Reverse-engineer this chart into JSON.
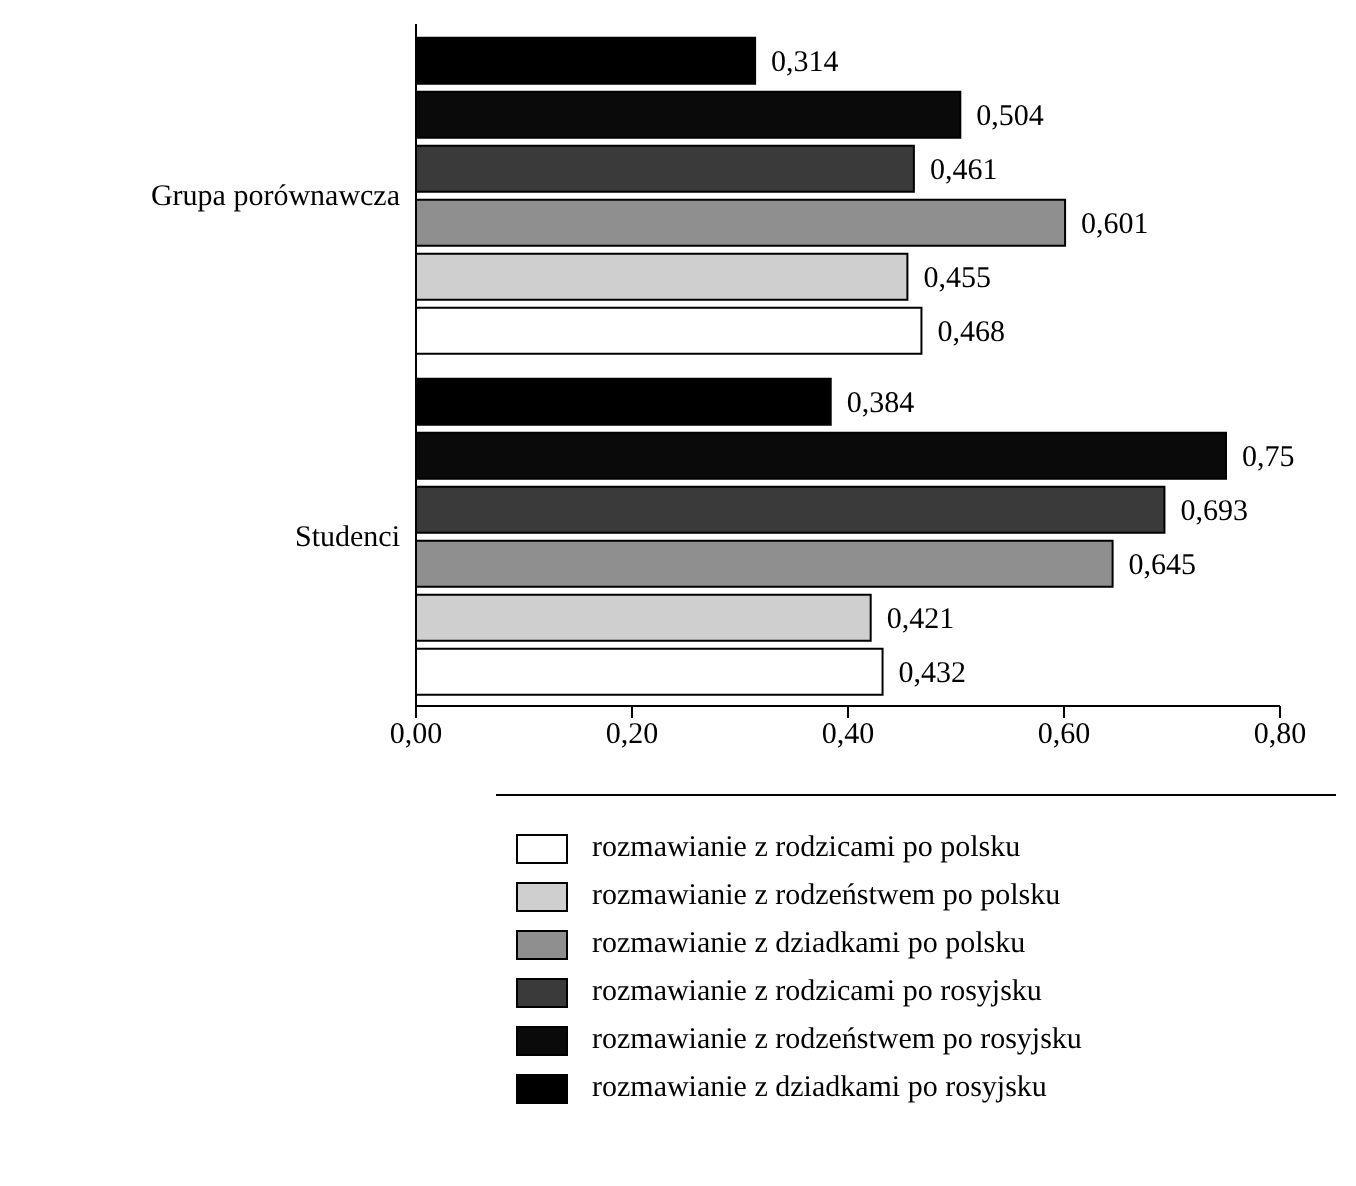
{
  "chart_data": {
    "type": "bar",
    "orientation": "horizontal",
    "categories": [
      "Grupa porównawcza",
      "Studenci"
    ],
    "series": [
      {
        "name": "rozmawianie z rodzicami po polsku",
        "color": "#ffffff",
        "values": [
          0.468,
          0.432
        ],
        "value_labels": [
          "0,468",
          "0,432"
        ]
      },
      {
        "name": "rozmawianie z rodzeństwem po polsku",
        "color": "#cfcfcf",
        "values": [
          0.455,
          0.421
        ],
        "value_labels": [
          "0,455",
          "0,421"
        ]
      },
      {
        "name": "rozmawianie z dziadkami po polsku",
        "color": "#8f8f8f",
        "values": [
          0.601,
          0.645
        ],
        "value_labels": [
          "0,601",
          "0,645"
        ]
      },
      {
        "name": "rozmawianie z rodzicami po rosyjsku",
        "color": "#3a3a3a",
        "values": [
          0.461,
          0.693
        ],
        "value_labels": [
          "0,461",
          "0,693"
        ]
      },
      {
        "name": "rozmawianie z rodzeństwem po rosyjsku",
        "color": "#0a0a0a",
        "values": [
          0.504,
          0.75
        ],
        "value_labels": [
          "0,504",
          "0,75"
        ]
      },
      {
        "name": "rozmawianie z dziadkami po rosyjsku",
        "color": "#000000",
        "values": [
          0.314,
          0.384
        ],
        "value_labels": [
          "0,314",
          "0,384"
        ]
      }
    ],
    "xlim": [
      0,
      0.8
    ],
    "xticks": [
      {
        "value": 0,
        "label": "0,00"
      },
      {
        "value": 0.2,
        "label": "0,20"
      },
      {
        "value": 0.4,
        "label": "0,40"
      },
      {
        "value": 0.6,
        "label": "0,60"
      },
      {
        "value": 0.8,
        "label": "0,80"
      }
    ],
    "grid": false,
    "legend": "bottom"
  }
}
